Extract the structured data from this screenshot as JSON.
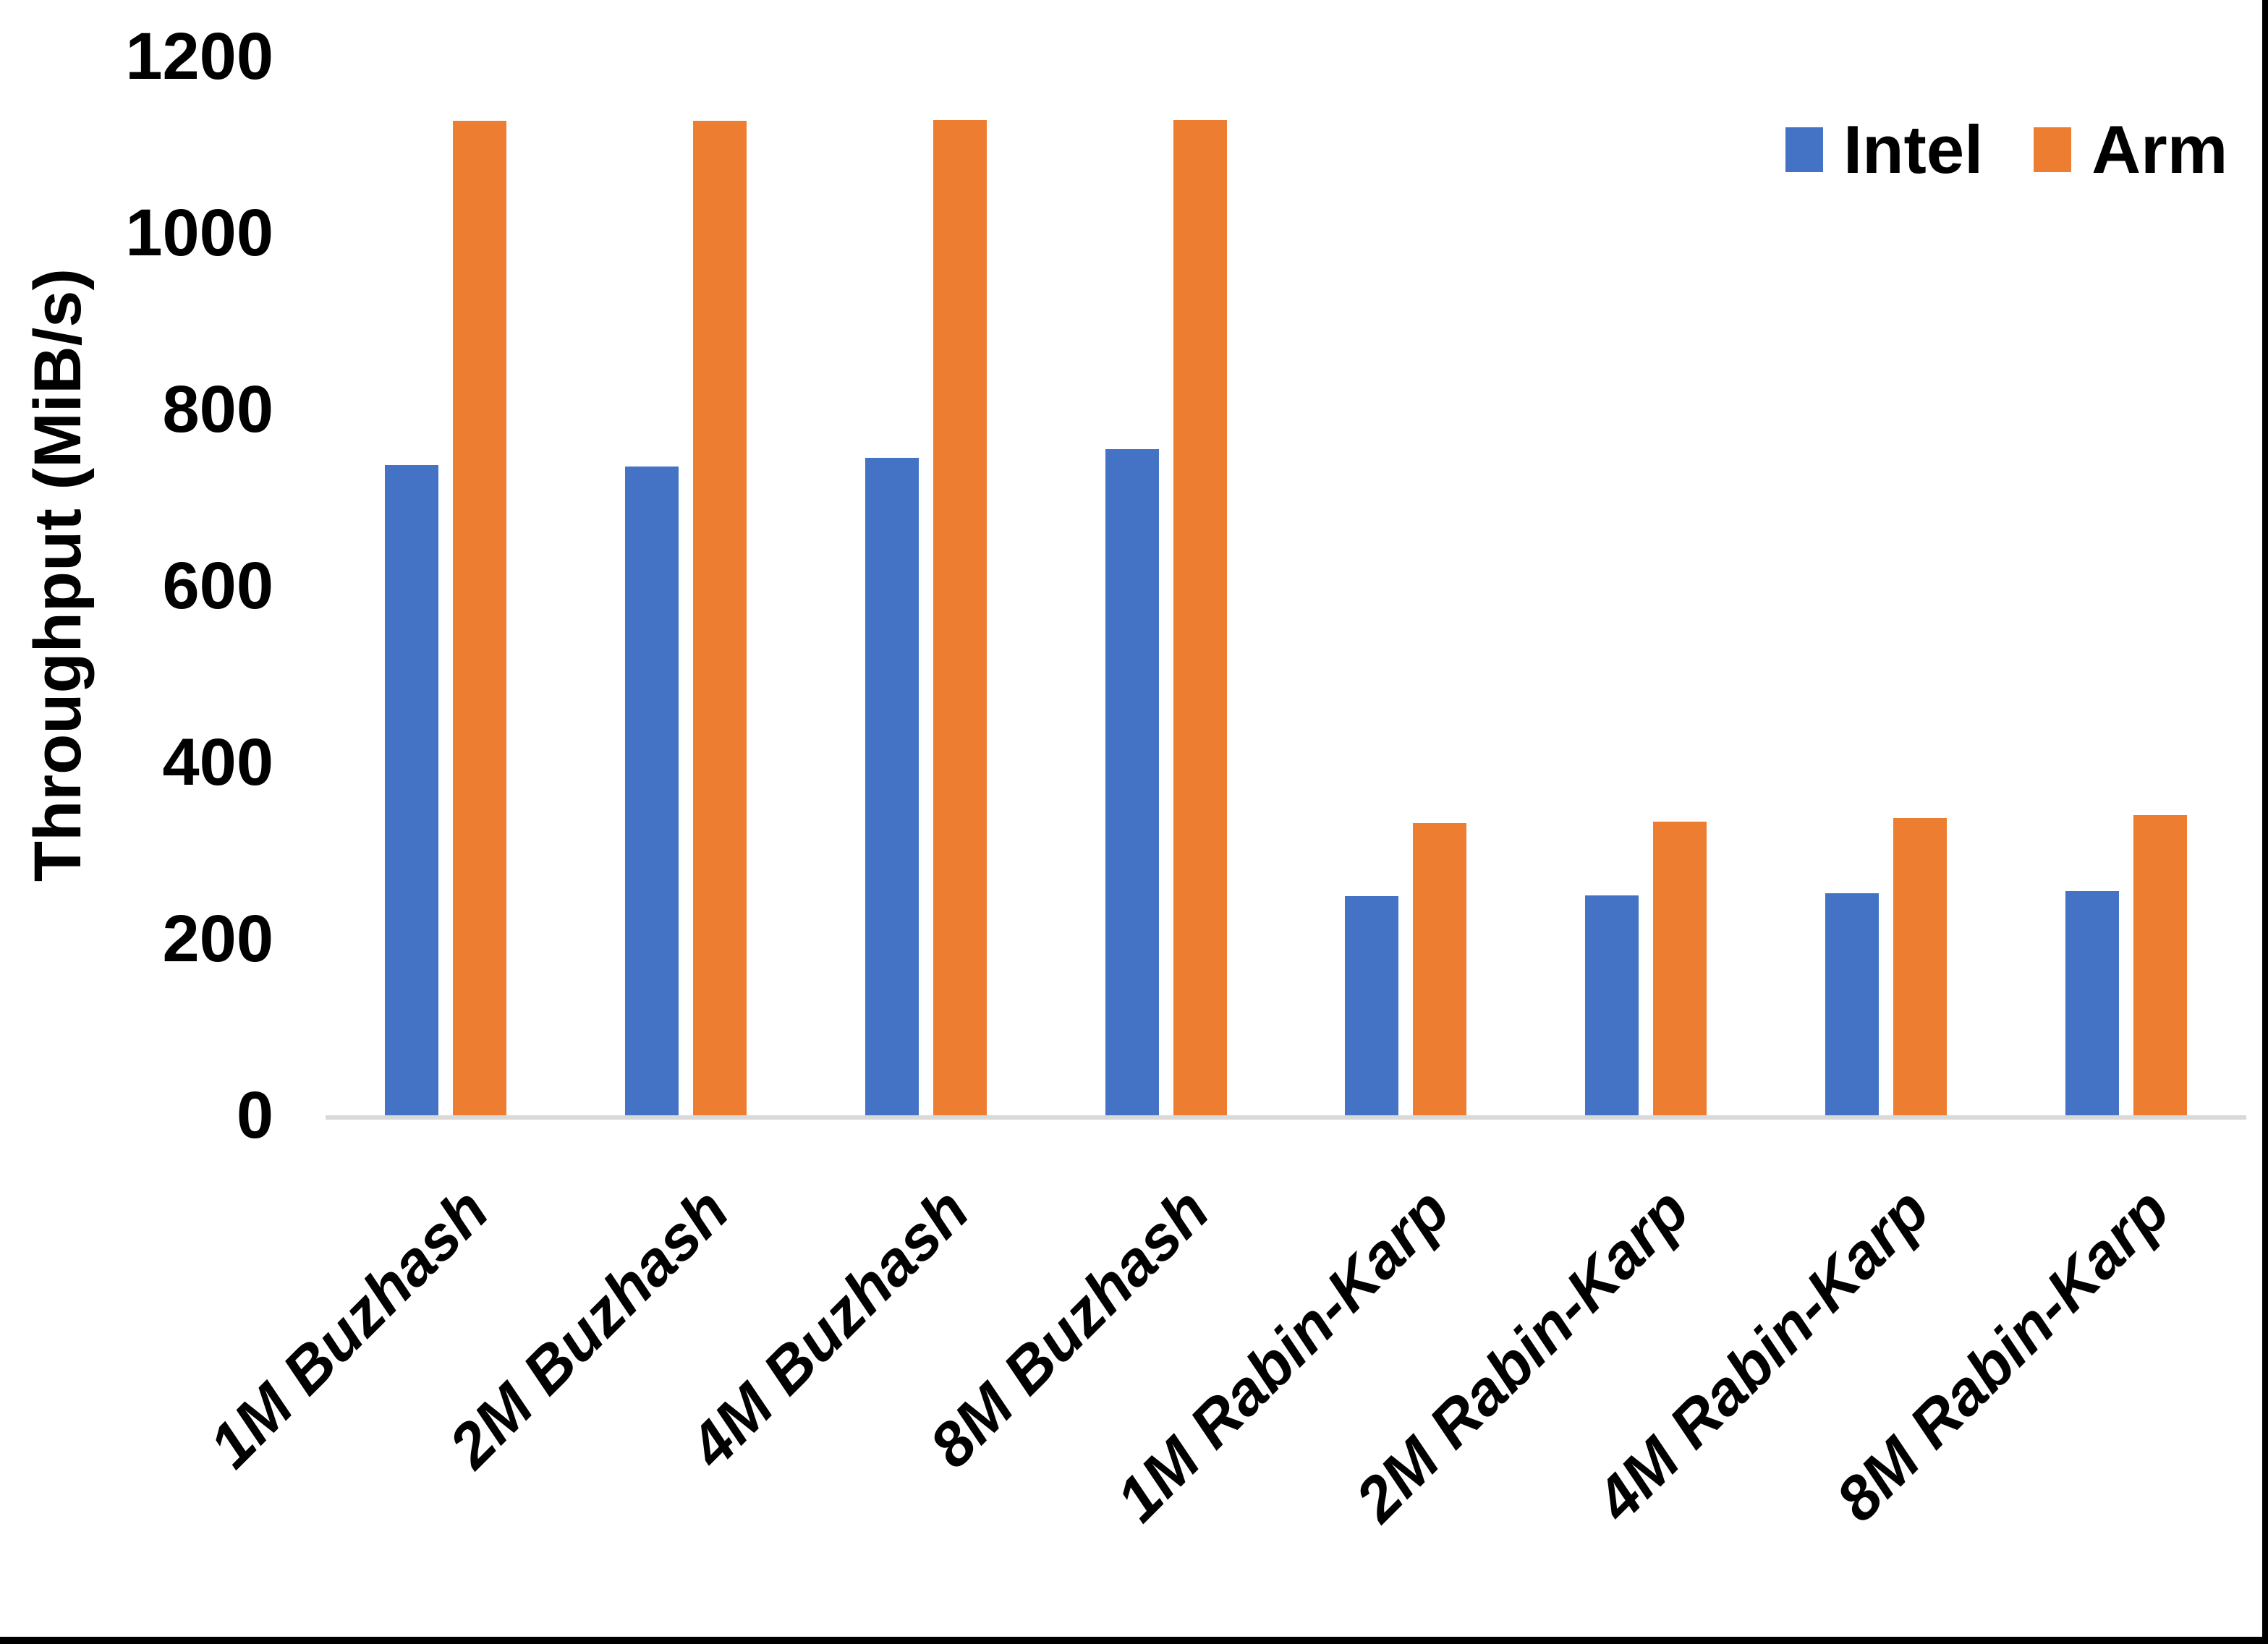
{
  "chart_data": {
    "type": "bar",
    "title": "",
    "xlabel": "",
    "ylabel": "Throughput (MiB/s)",
    "ylim": [
      0,
      1200
    ],
    "yticks": [
      0,
      200,
      400,
      600,
      800,
      1000,
      1200
    ],
    "grid": false,
    "legend_position": "top-right",
    "categories": [
      "1M Buzhash",
      "2M Buzhash",
      "4M Buzhash",
      "8M Buzhash",
      "1M Rabin-Karp",
      "2M Rabin-Karp",
      "4M Rabin-Karp",
      "8M Rabin-Karp"
    ],
    "series": [
      {
        "name": "Intel",
        "color": "#4472C4",
        "values": [
          737,
          735,
          745,
          755,
          248,
          249,
          252,
          254
        ]
      },
      {
        "name": "Arm",
        "color": "#ED7D31",
        "values": [
          1127,
          1127,
          1128,
          1128,
          331,
          333,
          337,
          340
        ]
      }
    ],
    "axis_line_color": "#D9D9D9",
    "text_color": "#000000",
    "background_color": "#FFFFFF",
    "border_color": "#000000"
  }
}
